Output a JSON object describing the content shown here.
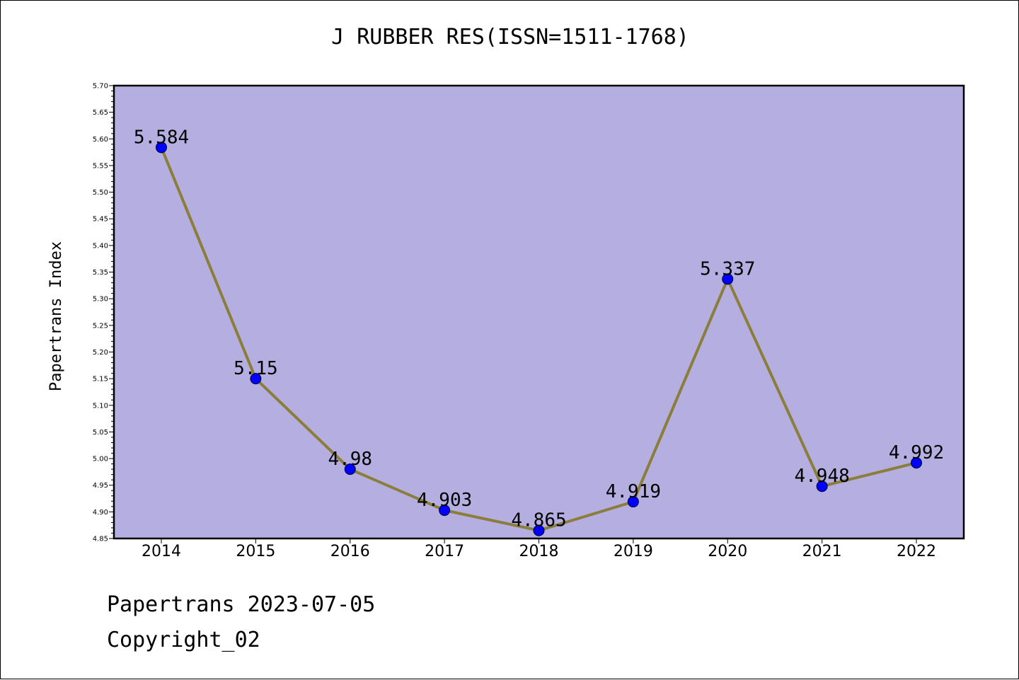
{
  "chart_data": {
    "type": "line",
    "title": "J RUBBER RES(ISSN=1511-1768)",
    "xlabel": "",
    "ylabel": "Papertrans Index",
    "categories": [
      "2014",
      "2015",
      "2016",
      "2017",
      "2018",
      "2019",
      "2020",
      "2021",
      "2022"
    ],
    "series": [
      {
        "values": [
          5.584,
          5.15,
          4.98,
          4.903,
          4.865,
          4.919,
          5.337,
          4.948,
          4.992
        ]
      }
    ],
    "data_labels": [
      "5.584",
      "5.15",
      "4.98",
      "4.903",
      "4.865",
      "4.919",
      "5.337",
      "4.948",
      "4.992"
    ],
    "ylim": [
      4.85,
      5.7
    ],
    "yticks": [
      "4.85",
      "4.90",
      "4.95",
      "5.00",
      "5.05",
      "5.10",
      "5.15",
      "5.20",
      "5.25",
      "5.30",
      "5.35",
      "5.40",
      "5.45",
      "5.50",
      "5.55",
      "5.60",
      "5.65",
      "5.70"
    ],
    "grid": false,
    "colors": {
      "plot_background": "#b5aee0",
      "line": "#8b7d3a",
      "marker": "#0000ff"
    }
  },
  "footer": {
    "date_text": "Papertrans 2023-07-05",
    "copyright_text": "Copyright_02"
  }
}
